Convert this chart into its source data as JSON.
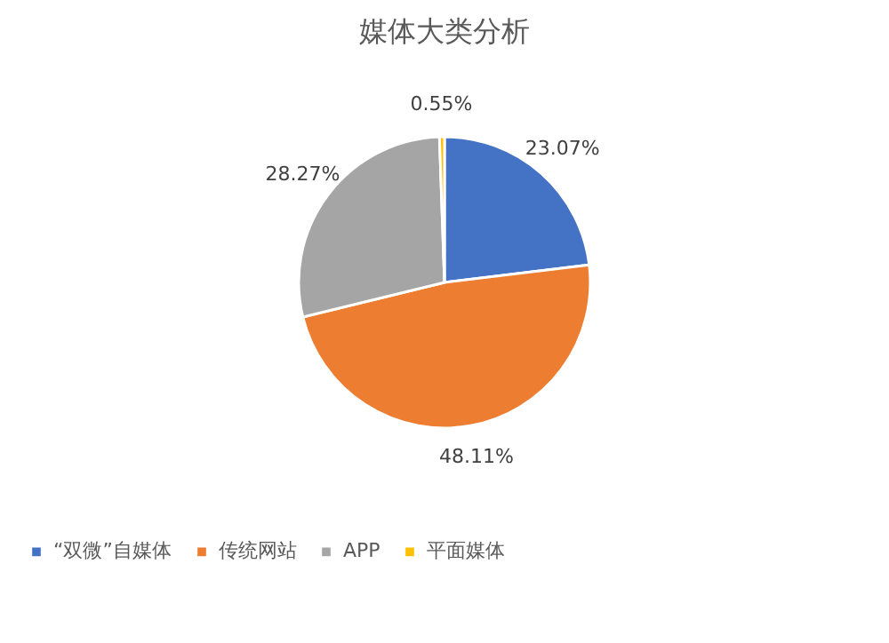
{
  "chart_data": {
    "type": "pie",
    "title": "媒体大类分析",
    "categories": [
      "“双微”自媒体",
      "传统网站",
      "APP",
      "平面媒体"
    ],
    "values": [
      23.07,
      48.11,
      28.27,
      0.55
    ],
    "colors": [
      "#4472c4",
      "#ed7d31",
      "#a5a5a5",
      "#ffc000"
    ],
    "value_labels": [
      "23.07%",
      "48.11%",
      "28.27%",
      "0.55%"
    ],
    "legend": "bottom"
  }
}
